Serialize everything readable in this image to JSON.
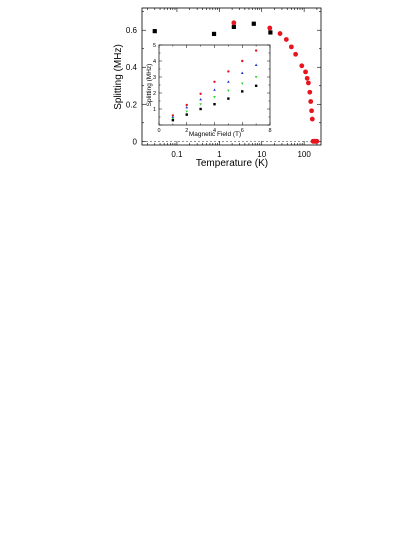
{
  "chart_data": [
    {
      "type": "scatter",
      "role": "main",
      "xlabel": "Temperature (K)",
      "ylabel": "Splitting (MHz)",
      "xscale": "log",
      "xlim": [
        0.015,
        250
      ],
      "ylim": [
        -0.02,
        0.72
      ],
      "x_ticks": [
        0.1,
        1,
        10,
        100
      ],
      "x_tick_labels": [
        "0.1",
        "1",
        "10",
        "100"
      ],
      "y_ticks": [
        0,
        0.2,
        0.4,
        0.6
      ],
      "y_tick_labels": [
        "0",
        "0.2",
        "0.4",
        "0.6"
      ],
      "zero_line": "dashed",
      "series": [
        {
          "marker": "square",
          "color": "#000000",
          "points": [
            [
              0.03,
              0.595
            ],
            [
              0.75,
              0.58
            ],
            [
              2.2,
              0.618
            ],
            [
              6.5,
              0.635
            ],
            [
              16,
              0.588
            ]
          ]
        },
        {
          "marker": "circle",
          "color": "#e8141e",
          "points": [
            [
              2.2,
              0.64
            ],
            [
              15.5,
              0.612
            ],
            [
              27,
              0.582
            ],
            [
              38,
              0.55
            ],
            [
              50,
              0.51
            ],
            [
              63,
              0.47
            ],
            [
              88,
              0.408
            ],
            [
              108,
              0.375
            ],
            [
              118,
              0.34
            ],
            [
              126,
              0.315
            ],
            [
              136,
              0.265
            ],
            [
              143,
              0.215
            ],
            [
              150,
              0.165
            ],
            [
              156,
              0.12
            ],
            [
              162,
              0.0
            ],
            [
              172,
              0.0
            ],
            [
              180,
              0.0
            ],
            [
              190,
              0.0
            ],
            [
              200,
              0.0
            ]
          ]
        }
      ]
    },
    {
      "type": "scatter",
      "role": "inset",
      "xlabel": "Magnetic Field (T)",
      "ylabel": "Splitting (MHz)",
      "xlim": [
        0,
        8
      ],
      "ylim": [
        0,
        5
      ],
      "x_ticks": [
        0,
        2,
        4,
        6,
        8
      ],
      "x_tick_labels": [
        "0",
        "2",
        "4",
        "6",
        "8"
      ],
      "y_ticks": [
        0,
        1,
        2,
        3,
        4,
        5
      ],
      "y_tick_labels": [
        "0",
        "1",
        "2",
        "3",
        "4",
        "5"
      ],
      "series": [
        {
          "marker": "circle",
          "color": "#e8141e",
          "points": [
            [
              1,
              0.6
            ],
            [
              2,
              1.25
            ],
            [
              3,
              1.95
            ],
            [
              4,
              2.7
            ],
            [
              5,
              3.35
            ],
            [
              6,
              4.0
            ],
            [
              7,
              4.65
            ]
          ]
        },
        {
          "marker": "triangle",
          "color": "#1f2fd0",
          "points": [
            [
              1,
              0.5
            ],
            [
              2,
              1.1
            ],
            [
              3,
              1.6
            ],
            [
              4,
              2.2
            ],
            [
              5,
              2.7
            ],
            [
              6,
              3.25
            ],
            [
              7,
              3.75
            ]
          ]
        },
        {
          "marker": "triangle-down",
          "color": "#2fd02f",
          "points": [
            [
              1,
              0.4
            ],
            [
              2,
              0.85
            ],
            [
              3,
              1.3
            ],
            [
              4,
              1.75
            ],
            [
              5,
              2.15
            ],
            [
              6,
              2.6
            ],
            [
              7,
              3.0
            ]
          ]
        },
        {
          "marker": "square",
          "color": "#000000",
          "points": [
            [
              1,
              0.3
            ],
            [
              2,
              0.65
            ],
            [
              3,
              1.0
            ],
            [
              4,
              1.3
            ],
            [
              5,
              1.65
            ],
            [
              6,
              2.1
            ],
            [
              7,
              2.45
            ]
          ]
        }
      ]
    }
  ]
}
